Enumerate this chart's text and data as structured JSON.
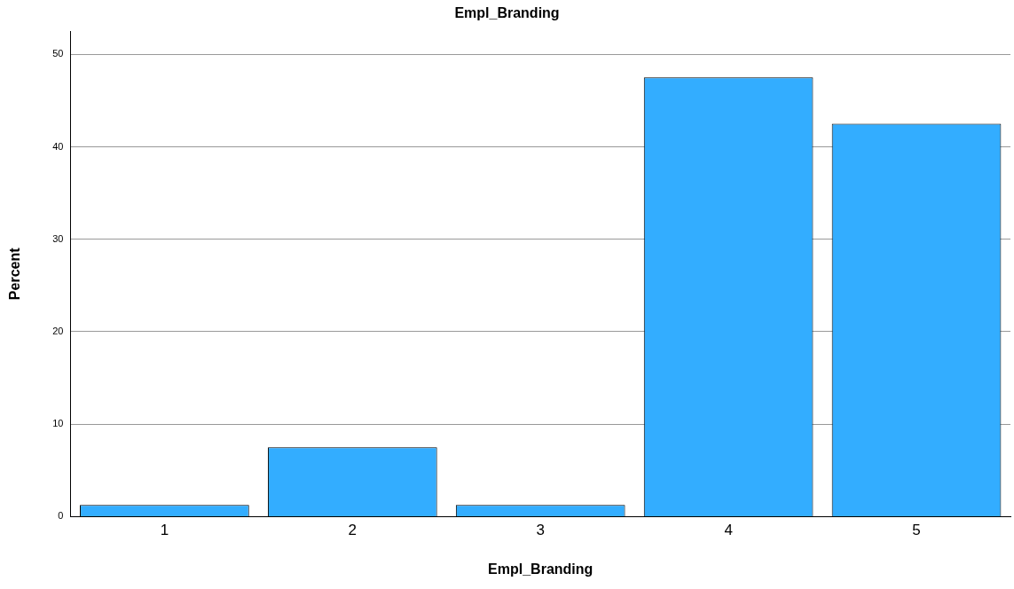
{
  "chart_data": {
    "type": "bar",
    "title": "Empl_Branding",
    "xlabel": "Empl_Branding",
    "ylabel": "Percent",
    "categories": [
      "1",
      "2",
      "3",
      "4",
      "5"
    ],
    "values": [
      1.25,
      7.5,
      1.25,
      47.5,
      42.5
    ],
    "color": "#33adff",
    "ylim": [
      0,
      52.5
    ],
    "yticks": [
      0,
      10,
      20,
      30,
      40,
      50
    ],
    "grid": "y"
  }
}
